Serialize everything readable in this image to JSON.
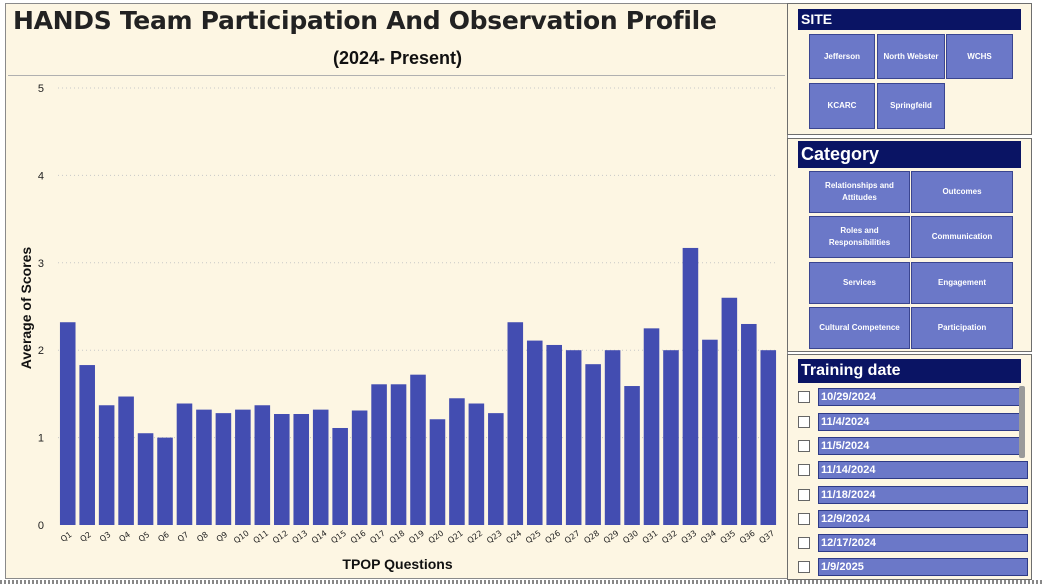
{
  "colors": {
    "bar": "#434db1",
    "panel_bg": "#fdf6e3",
    "header_bg": "#0a1464",
    "tile_bg": "#6b78c8"
  },
  "chart_data": {
    "type": "bar",
    "title": "HANDS Team Participation And Observation Profile",
    "subtitle": "(2024- Present)",
    "xlabel": "TPOP Questions",
    "ylabel": "Average of Scores",
    "ylim": [
      0,
      5
    ],
    "yticks": [
      0,
      1,
      2,
      3,
      4,
      5
    ],
    "grid": true,
    "categories": [
      "Q1",
      "Q2",
      "Q3",
      "Q4",
      "Q5",
      "Q6",
      "Q7",
      "Q8",
      "Q9",
      "Q10",
      "Q11",
      "Q12",
      "Q13",
      "Q14",
      "Q15",
      "Q16",
      "Q17",
      "Q18",
      "Q19",
      "Q20",
      "Q21",
      "Q22",
      "Q23",
      "Q24",
      "Q25",
      "Q26",
      "Q27",
      "Q28",
      "Q29",
      "Q30",
      "Q31",
      "Q32",
      "Q33",
      "Q34",
      "Q35",
      "Q36",
      "Q37"
    ],
    "values": [
      2.32,
      1.83,
      1.37,
      1.47,
      1.05,
      1.0,
      1.39,
      1.32,
      1.28,
      1.32,
      1.37,
      1.27,
      1.27,
      1.32,
      1.11,
      1.31,
      1.61,
      1.61,
      1.72,
      1.21,
      1.45,
      1.39,
      1.28,
      2.32,
      2.11,
      2.06,
      2.0,
      1.84,
      2.0,
      1.59,
      2.25,
      2.0,
      3.17,
      2.12,
      2.6,
      2.3,
      2.0
    ]
  },
  "site_slicer": {
    "header": "SITE",
    "items": [
      "Jefferson",
      "North Webster",
      "WCHS",
      "KCARC",
      "Springfeild"
    ]
  },
  "category_slicer": {
    "header": "Category",
    "items": [
      "Relationships and Attitudes",
      "Outcomes",
      "Roles and Responsibilities",
      "Communication",
      "Services",
      "Engagement",
      "Cultural Competence",
      "Participation"
    ]
  },
  "training_slicer": {
    "header": "Training date",
    "dates": [
      "10/29/2024",
      "11/4/2024",
      "11/5/2024",
      "11/14/2024",
      "11/18/2024",
      "12/9/2024",
      "12/17/2024",
      "1/9/2025"
    ]
  }
}
